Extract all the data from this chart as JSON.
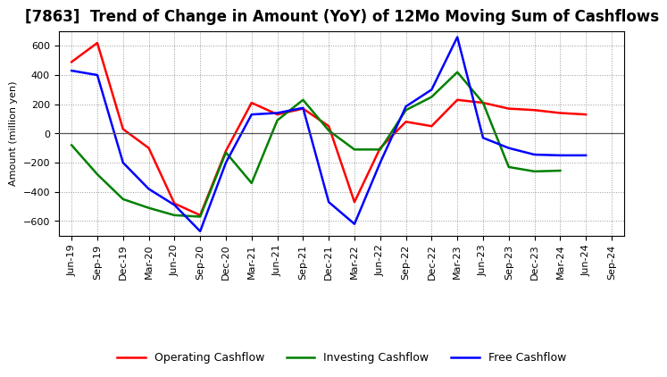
{
  "title": "[7863]  Trend of Change in Amount (YoY) of 12Mo Moving Sum of Cashflows",
  "ylabel": "Amount (million yen)",
  "x_labels": [
    "Jun-19",
    "Sep-19",
    "Dec-19",
    "Mar-20",
    "Jun-20",
    "Sep-20",
    "Dec-20",
    "Mar-21",
    "Jun-21",
    "Sep-21",
    "Dec-21",
    "Mar-22",
    "Jun-22",
    "Sep-22",
    "Dec-22",
    "Mar-23",
    "Jun-23",
    "Sep-23",
    "Dec-23",
    "Mar-24",
    "Jun-24",
    "Sep-24"
  ],
  "operating": [
    490,
    620,
    30,
    -100,
    -480,
    -560,
    -120,
    210,
    130,
    170,
    50,
    -470,
    -100,
    80,
    50,
    230,
    210,
    170,
    160,
    140,
    130,
    null
  ],
  "investing": [
    -80,
    -280,
    -450,
    -510,
    -560,
    -570,
    -130,
    -340,
    90,
    230,
    20,
    -110,
    -110,
    160,
    250,
    420,
    210,
    -230,
    -260,
    -255,
    null,
    null
  ],
  "free": [
    430,
    400,
    -200,
    -380,
    -490,
    -670,
    -200,
    130,
    140,
    175,
    -470,
    -620,
    -200,
    185,
    300,
    660,
    -30,
    -100,
    -145,
    -150,
    -150,
    null
  ],
  "operating_color": "#ff0000",
  "investing_color": "#008000",
  "free_color": "#0000ff",
  "ylim": [
    -700,
    700
  ],
  "yticks": [
    -600,
    -400,
    -200,
    0,
    200,
    400,
    600
  ],
  "bg_color": "#ffffff",
  "grid_color": "#aaaaaa",
  "title_fontsize": 12,
  "axis_fontsize": 8,
  "legend_fontsize": 9
}
